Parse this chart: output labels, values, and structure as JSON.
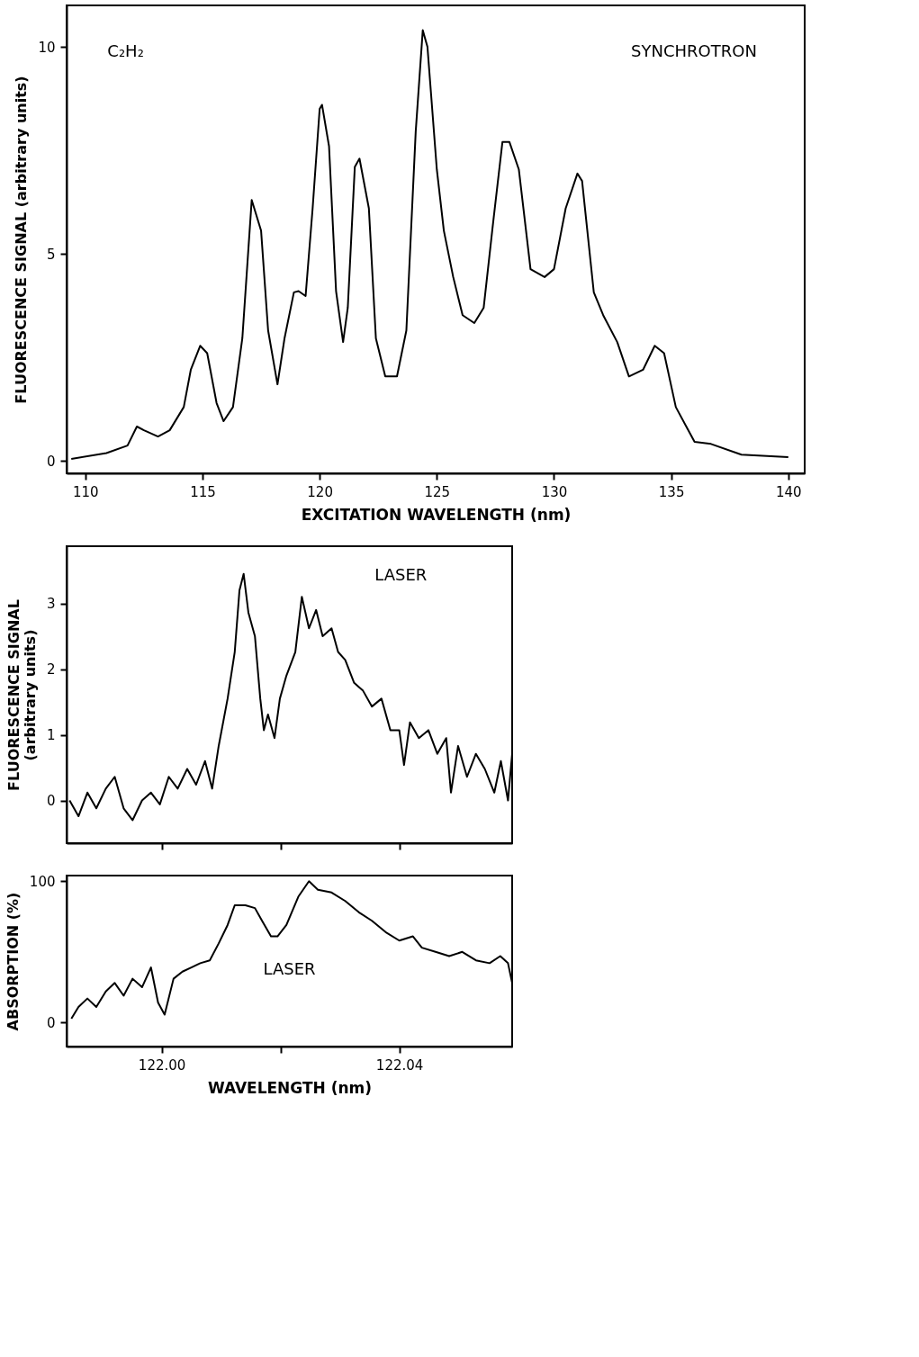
{
  "chart_data": [
    {
      "type": "line",
      "xlabel": "EXCITATION WAVELENGTH (nm)",
      "ylabel": "FLUORESCENCE SIGNAL (arbitrary units)",
      "annotations": [
        "C₂H₂",
        "SYNCHROTRON"
      ],
      "xlim": [
        109.2,
        140.7
      ],
      "xticks": [
        110,
        115,
        120,
        125,
        130,
        135,
        140
      ],
      "ylim": [
        -0.3,
        11
      ],
      "yticks": [
        0,
        5,
        10
      ],
      "grid": false,
      "series": [
        {
          "color": "#000000",
          "x": [
            109.4,
            110.9,
            111.8,
            112.2,
            112.5,
            113.1,
            113.6,
            114.2,
            114.5,
            114.9,
            115.2,
            115.6,
            115.9,
            116.3,
            116.7,
            117.1,
            117.5,
            117.8,
            118.2,
            118.5,
            118.9,
            119.1,
            119.4,
            119.7,
            120.0,
            120.1,
            120.4,
            120.7,
            121.0,
            121.2,
            121.5,
            121.7,
            122.1,
            122.4,
            122.8,
            123.3,
            123.7,
            124.1,
            124.4,
            124.6,
            125.0,
            125.3,
            125.7,
            126.1,
            126.6,
            127.0,
            127.4,
            127.8,
            128.1,
            128.5,
            129.0,
            129.6,
            130.0,
            130.5,
            131.0,
            131.2,
            131.7,
            132.1,
            132.7,
            133.2,
            133.8,
            134.3,
            134.7,
            135.2,
            136.0,
            136.7,
            138.0,
            140.0
          ],
          "values": [
            0.05,
            0.19,
            0.37,
            0.83,
            0.74,
            0.59,
            0.74,
            1.3,
            2.2,
            2.78,
            2.6,
            1.4,
            0.96,
            1.3,
            2.96,
            6.3,
            5.56,
            3.15,
            1.85,
            2.96,
            4.07,
            4.1,
            3.98,
            6.1,
            8.5,
            8.6,
            7.6,
            4.1,
            2.87,
            3.7,
            7.1,
            7.3,
            6.1,
            2.96,
            2.04,
            2.04,
            3.15,
            7.96,
            10.4,
            10.0,
            7.04,
            5.56,
            4.44,
            3.52,
            3.33,
            3.7,
            5.74,
            7.7,
            7.7,
            7.04,
            4.63,
            4.44,
            4.63,
            6.1,
            6.94,
            6.76,
            4.07,
            3.52,
            2.87,
            2.04,
            2.2,
            2.78,
            2.6,
            1.3,
            0.46,
            0.41,
            0.15,
            0.09
          ]
        }
      ]
    },
    {
      "type": "line",
      "ylabel": "FLUORESCENCE SIGNAL\n(arbitrary units)",
      "annotations": [
        "LASER"
      ],
      "xlim": [
        121.984,
        122.059
      ],
      "xticks": [
        {
          "value": 122.0,
          "label": null
        },
        {
          "value": 122.02,
          "label": null
        },
        {
          "value": 122.04,
          "label": null
        }
      ],
      "ylim": [
        -0.65,
        3.87
      ],
      "yticks": [
        0,
        1,
        2,
        3
      ],
      "tick_labels": "y",
      "grid": false,
      "series": [
        {
          "color": "#000000",
          "x": [
            121.9845,
            121.986,
            121.9875,
            121.989,
            121.9906,
            121.9921,
            121.9936,
            121.9951,
            121.9967,
            121.9982,
            121.9997,
            122.0012,
            122.0027,
            122.0043,
            122.0058,
            122.0073,
            122.0085,
            122.0096,
            122.0111,
            122.0123,
            122.0131,
            122.0138,
            122.0146,
            122.0157,
            122.0166,
            122.0172,
            122.0179,
            122.019,
            122.0199,
            122.021,
            122.0225,
            122.0236,
            122.0248,
            122.026,
            122.0271,
            122.0286,
            122.0297,
            122.0309,
            122.0324,
            122.0339,
            122.0354,
            122.037,
            122.0385,
            122.04,
            122.0408,
            122.0418,
            122.0433,
            122.0449,
            122.0464,
            122.0479,
            122.0487,
            122.0499,
            122.0514,
            122.0529,
            122.0544,
            122.056,
            122.0571,
            122.0583,
            122.059
          ],
          "values": [
            0.0,
            -0.24,
            0.12,
            -0.12,
            0.18,
            0.36,
            -0.12,
            -0.3,
            0.0,
            0.12,
            -0.06,
            0.36,
            0.18,
            0.48,
            0.24,
            0.6,
            0.18,
            0.83,
            1.55,
            2.26,
            3.2,
            3.45,
            2.86,
            2.5,
            1.55,
            1.07,
            1.31,
            0.95,
            1.55,
            1.9,
            2.26,
            3.1,
            2.62,
            2.9,
            2.5,
            2.62,
            2.26,
            2.14,
            1.79,
            1.67,
            1.43,
            1.55,
            1.07,
            1.07,
            0.54,
            1.19,
            0.95,
            1.07,
            0.71,
            0.95,
            0.12,
            0.83,
            0.36,
            0.71,
            0.48,
            0.12,
            0.6,
            0.0,
            0.71
          ]
        }
      ]
    },
    {
      "type": "line",
      "xlabel": "WAVELENGTH (nm)",
      "ylabel": "ABSORPTION (%)",
      "annotations": [
        "LASER"
      ],
      "xlim": [
        121.984,
        122.059
      ],
      "xticks": [
        {
          "value": 122.0,
          "label": "122.00"
        },
        {
          "value": 122.02,
          "label": null
        },
        {
          "value": 122.04,
          "label": "122.04"
        }
      ],
      "ylim": [
        -17,
        104
      ],
      "yticks": [
        0,
        100
      ],
      "grid": false,
      "series": [
        {
          "color": "#000000",
          "x": [
            121.9848,
            121.986,
            121.9875,
            121.989,
            121.9906,
            121.9921,
            121.9936,
            121.9951,
            121.9967,
            121.9982,
            121.9994,
            122.0005,
            122.002,
            122.0035,
            122.005,
            122.0065,
            122.0081,
            122.0096,
            122.0111,
            122.0123,
            122.0141,
            122.0157,
            122.0169,
            122.0184,
            122.0195,
            122.021,
            122.023,
            122.0248,
            122.0263,
            122.0286,
            122.0309,
            122.0332,
            122.0354,
            122.0377,
            122.04,
            122.0423,
            122.0438,
            122.0461,
            122.0484,
            122.0506,
            122.0529,
            122.0552,
            122.057,
            122.0583,
            122.059
          ],
          "values": [
            2.8,
            11,
            17,
            11,
            22,
            28,
            19,
            31,
            25,
            39,
            14,
            5.6,
            31,
            36,
            39,
            42,
            44,
            56,
            69,
            83,
            83,
            81,
            72,
            61,
            61,
            69,
            89,
            100,
            94,
            92,
            86,
            78,
            72,
            64,
            58,
            61,
            53,
            50,
            47,
            50,
            44,
            42,
            47,
            42,
            28
          ]
        }
      ]
    }
  ]
}
